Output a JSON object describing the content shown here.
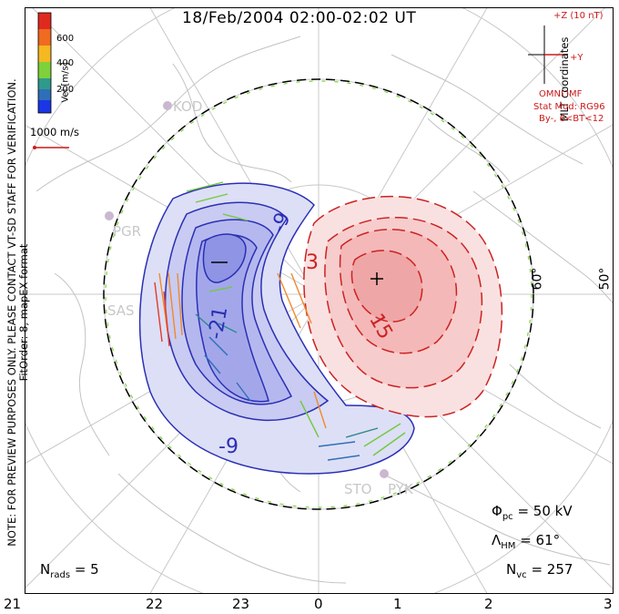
{
  "title": "18/Feb/2004 02:00-02:02 UT",
  "side_note_line1": "NOTE: FOR PREVIEW PURPOSES ONLY. PLEASE CONTACT VT-SD STAFF FOR VERIFICATION.",
  "side_note_line2": "FitOrder: 8, mapEX format",
  "coordinate_label": "MLT coordinates",
  "colorbar": {
    "label": "Vel [m/s]",
    "ticks": [
      "600",
      "400",
      "200"
    ]
  },
  "scale_label": "1000 m/s",
  "imf": {
    "z_label": "+Z (10 nT)",
    "y_label": "+Y",
    "source": "OMNI IMF",
    "model": "Stat Mod: RG96",
    "condition": "By-, 6<BT<12"
  },
  "latitude_labels": [
    "60°",
    "50°"
  ],
  "mlt_ticks": [
    "21",
    "22",
    "23",
    "0",
    "1",
    "2",
    "3"
  ],
  "contour_labels": {
    "neg_a": "-9",
    "neg_b": "-21",
    "neg_c": "-9",
    "pos_a": "3",
    "pos_b": "15"
  },
  "radar_labels": [
    "KOD",
    "PGR",
    "SAS",
    "STO",
    "PYK"
  ],
  "stats": {
    "phi_pc": {
      "symbol": "Φ",
      "sub": "pc",
      "value": "= 50 kV"
    },
    "lambda_hm": {
      "symbol": "Λ",
      "sub": "HM",
      "value": "= 61°"
    },
    "n_vc": {
      "symbol": "N",
      "sub": "vc",
      "value": "= 257"
    },
    "n_rads": {
      "symbol": "N",
      "sub": "rads",
      "value": "= 5"
    }
  },
  "colors": {
    "negative": "#2a2fb5",
    "positive": "#cc2222",
    "neg_fill": "#b7b9ef",
    "pos_fill": "#f4b8b8"
  }
}
